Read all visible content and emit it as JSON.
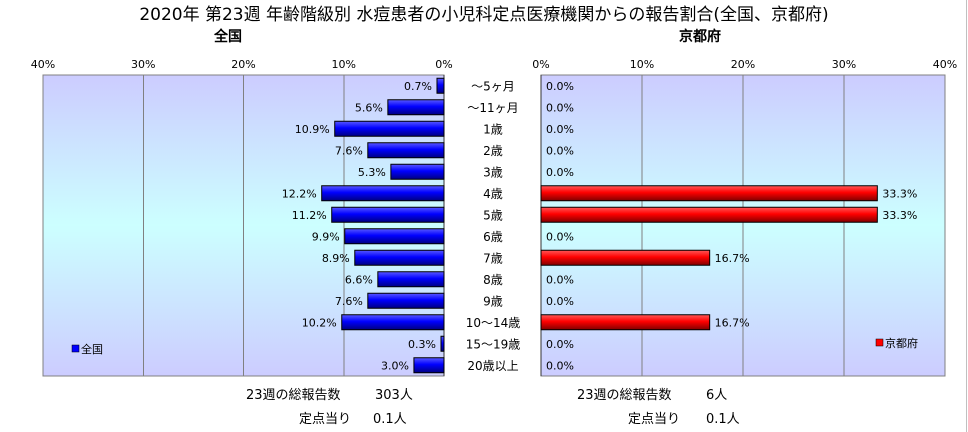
{
  "chart_data": {
    "type": "bar",
    "orientation": "horizontal",
    "title": "2020年 第23週 年齢階級別 水痘患者の小児科定点医療機関からの報告割合(全国、京都府)",
    "categories": [
      "～5ヶ月",
      "～11ヶ月",
      "1歳",
      "2歳",
      "3歳",
      "4歳",
      "5歳",
      "6歳",
      "7歳",
      "8歳",
      "9歳",
      "10～14歳",
      "15～19歳",
      "20歳以上"
    ],
    "grid": true,
    "x_axis_position": "top",
    "plot_background": [
      "#ccccff",
      "#ccffff",
      "#ccccff"
    ],
    "series": [
      {
        "name": "全国",
        "color": "#0000ff",
        "values": [
          0.7,
          5.6,
          10.9,
          7.6,
          5.3,
          12.2,
          11.2,
          9.9,
          8.9,
          6.6,
          7.6,
          10.2,
          0.3,
          3.0
        ],
        "data_labels": [
          "0.7%",
          "5.6%",
          "10.9%",
          "7.6%",
          "5.3%",
          "12.2%",
          "11.2%",
          "9.9%",
          "8.9%",
          "6.6%",
          "7.6%",
          "10.2%",
          "0.3%",
          "3.0%"
        ],
        "xlim": [
          0,
          40
        ],
        "x_axis_reversed": true,
        "xticks": [
          0,
          10,
          20,
          30,
          40
        ],
        "xtick_labels": [
          "0%",
          "10%",
          "20%",
          "30%",
          "40%"
        ],
        "legend_position": "bottom-left"
      },
      {
        "name": "京都府",
        "color": "#ff0000",
        "values": [
          0.0,
          0.0,
          0.0,
          0.0,
          0.0,
          33.3,
          33.3,
          0.0,
          16.7,
          0.0,
          0.0,
          16.7,
          0.0,
          0.0
        ],
        "data_labels": [
          "0.0%",
          "0.0%",
          "0.0%",
          "0.0%",
          "0.0%",
          "33.3%",
          "33.3%",
          "0.0%",
          "16.7%",
          "0.0%",
          "0.0%",
          "16.7%",
          "0.0%",
          "0.0%"
        ],
        "xlim": [
          0,
          40
        ],
        "x_axis_reversed": false,
        "xticks": [
          0,
          10,
          20,
          30,
          40
        ],
        "xtick_labels": [
          "0%",
          "10%",
          "20%",
          "30%",
          "40%"
        ],
        "legend_position": "bottom-right"
      }
    ]
  },
  "footer": {
    "national": {
      "total_label": "23週の総報告数",
      "total_value": "303人",
      "per_site_label": "定点当り",
      "per_site_value": "0.1人"
    },
    "kyoto": {
      "total_label": "23週の総報告数",
      "total_value": "6人",
      "per_site_label": "定点当り",
      "per_site_value": "0.1人"
    }
  }
}
